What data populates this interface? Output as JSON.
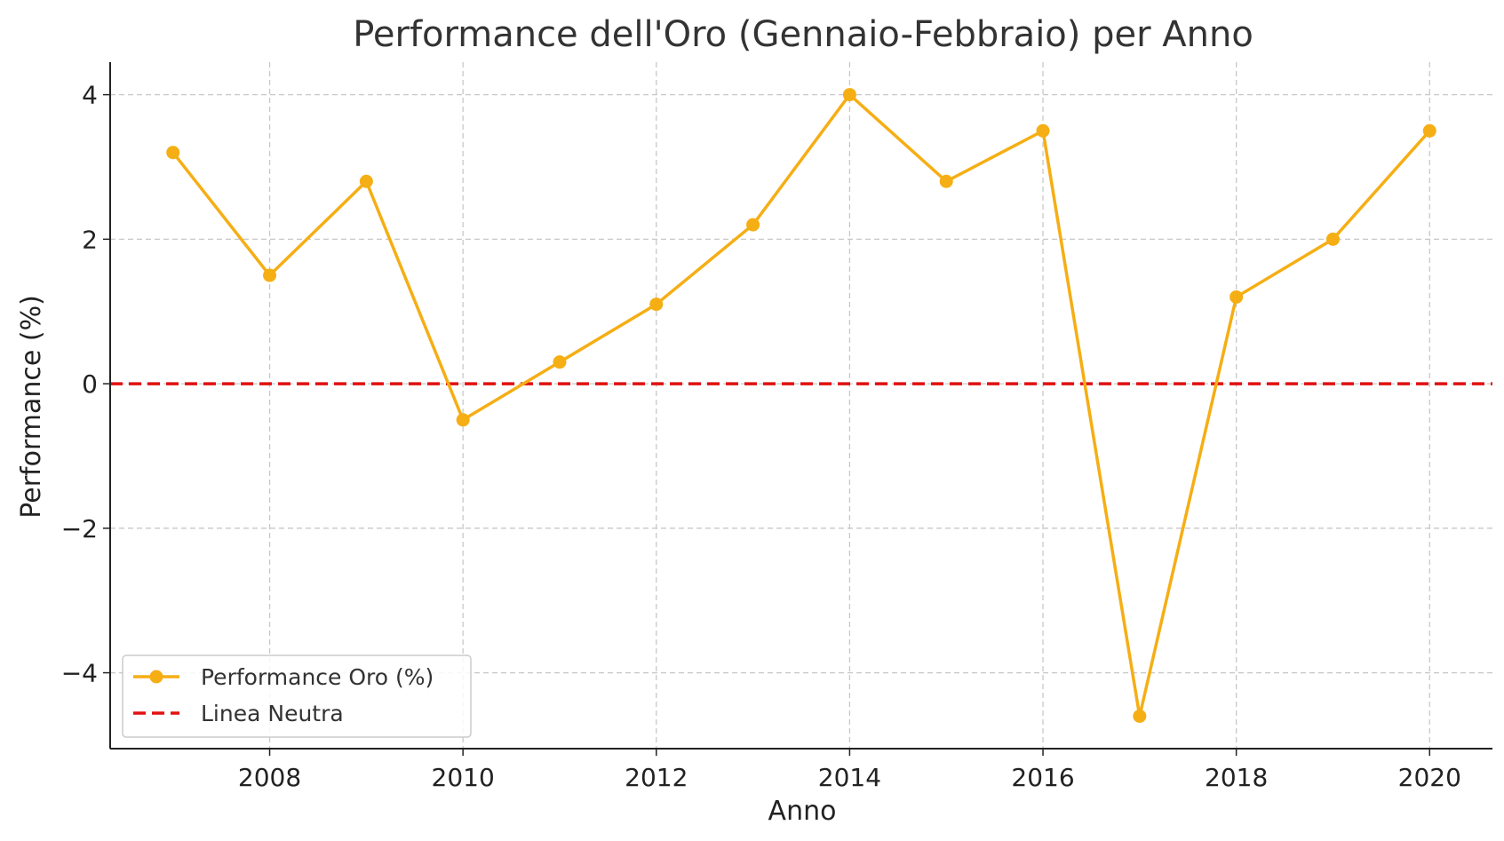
{
  "chart_data": {
    "type": "line",
    "title": "Performance dell'Oro (Gennaio-Febbraio) per Anno",
    "xlabel": "Anno",
    "ylabel": "Performance (%)",
    "x": [
      2007,
      2008,
      2009,
      2010,
      2011,
      2012,
      2013,
      2014,
      2015,
      2016,
      2017,
      2018,
      2019,
      2020
    ],
    "series": [
      {
        "name": "Performance Oro (%)",
        "values": [
          3.2,
          1.5,
          2.8,
          -0.5,
          0.3,
          1.1,
          2.2,
          4.0,
          2.8,
          3.5,
          -4.6,
          1.2,
          2.0,
          3.5
        ],
        "color": "#f5ae14",
        "marker": "circle"
      }
    ],
    "reference_lines": [
      {
        "name": "Linea Neutra",
        "y": 0,
        "color": "#e11111",
        "style": "dashed"
      }
    ],
    "xlim": [
      2006.35,
      2020.65
    ],
    "ylim": [
      -5.05,
      4.45
    ],
    "xticks": [
      2008,
      2010,
      2012,
      2014,
      2016,
      2018,
      2020
    ],
    "xtick_labels": [
      "2008",
      "2010",
      "2012",
      "2014",
      "2016",
      "2018",
      "2020"
    ],
    "yticks": [
      -4,
      -2,
      0,
      2,
      4
    ],
    "ytick_labels": [
      "−4",
      "−2",
      "0",
      "2",
      "4"
    ],
    "grid": true,
    "legend_position": "lower-left"
  }
}
